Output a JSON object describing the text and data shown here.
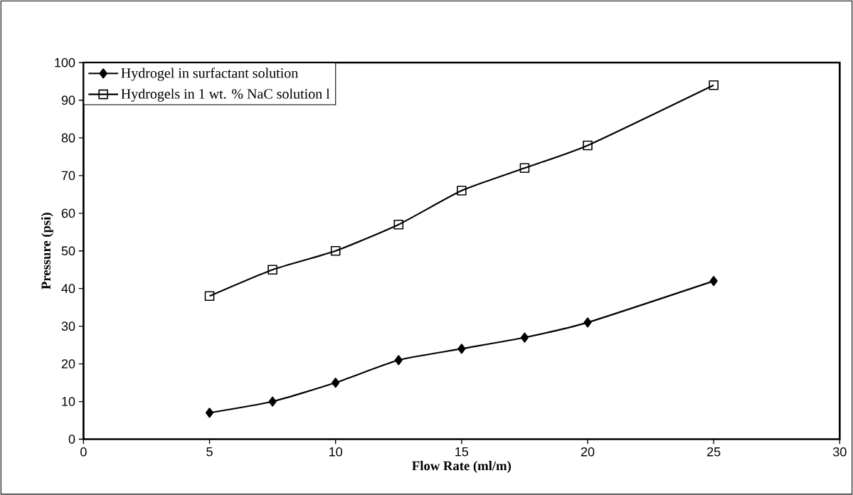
{
  "chart_data": {
    "type": "line",
    "xlabel": "Flow Rate (ml/m)",
    "ylabel": "Pressure (psi)",
    "x": [
      5,
      7.5,
      10,
      12.5,
      15,
      17.5,
      20,
      25
    ],
    "series": [
      {
        "name": "Hydrogel in surfactant solution",
        "color": "#000000",
        "marker": "diamond",
        "values": [
          7,
          10,
          15,
          21,
          24,
          27,
          31,
          42
        ]
      },
      {
        "name": "Hydrogels in 1 wt. % NaC solution l",
        "color": "#000000",
        "marker": "square",
        "values": [
          38,
          45,
          50,
          57,
          66,
          72,
          78,
          94
        ]
      }
    ],
    "xlim": [
      0,
      30
    ],
    "xticks": [
      0,
      5,
      10,
      15,
      20,
      25,
      30
    ],
    "ylim": [
      0,
      100
    ],
    "yticks": [
      0,
      10,
      20,
      30,
      40,
      50,
      60,
      70,
      80,
      90,
      100
    ],
    "grid": false,
    "legend": "top left",
    "line_style": "solid"
  }
}
